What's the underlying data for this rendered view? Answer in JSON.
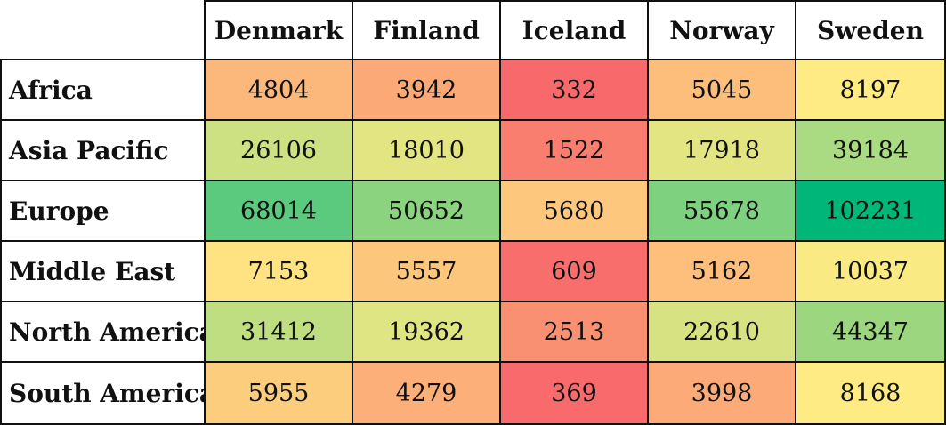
{
  "chart_data": {
    "type": "heatmap",
    "columns": [
      "Denmark",
      "Finland",
      "Iceland",
      "Norway",
      "Sweden"
    ],
    "rows": [
      "Africa",
      "Asia Pacific",
      "Europe",
      "Middle East",
      "North America",
      "South America"
    ],
    "values": [
      [
        4804,
        3942,
        332,
        5045,
        8197
      ],
      [
        26106,
        18010,
        1522,
        17918,
        39184
      ],
      [
        68014,
        50652,
        5680,
        55678,
        102231
      ],
      [
        7153,
        5557,
        609,
        5162,
        10037
      ],
      [
        31412,
        19362,
        2513,
        22610,
        44347
      ],
      [
        5955,
        4279,
        369,
        3998,
        8168
      ]
    ],
    "color_scale": {
      "low": "#f8696b",
      "mid": "#ffeb84",
      "high": "#00b77a"
    }
  }
}
